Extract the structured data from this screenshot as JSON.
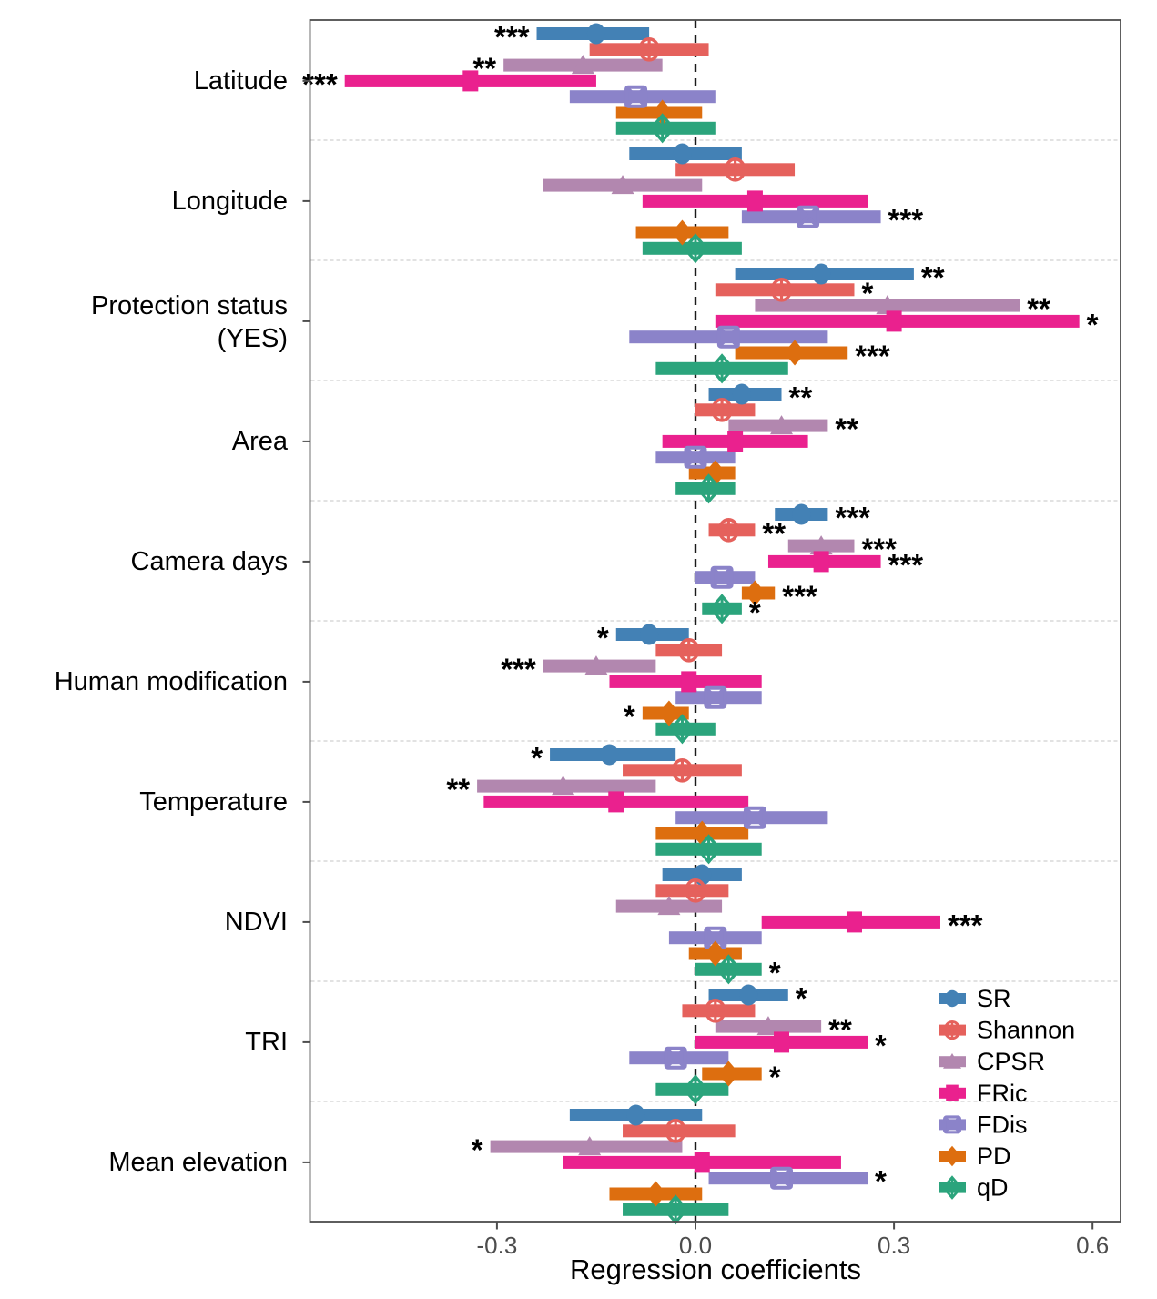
{
  "chart_data": {
    "type": "scatter",
    "subtype": "forest-coefficient-plot-with-error-bars",
    "title": "",
    "xlabel": "Regression coefficients",
    "x_axis": {
      "min": -0.58,
      "max": 0.64,
      "ticks": [
        -0.3,
        0.0,
        0.3,
        0.6
      ],
      "tick_labels": [
        "-0.3",
        "0.0",
        "0.3",
        "0.6"
      ],
      "zero_line": "dashed-black",
      "group_separators": "dashed-light-gray"
    },
    "legend": {
      "position": "inside-bottom-right",
      "items": [
        "SR",
        "Shannon",
        "CPSR",
        "FRic",
        "FDis",
        "PD",
        "qD"
      ]
    },
    "metrics": [
      {
        "name": "SR",
        "color": "#4381B5",
        "marker": "circle"
      },
      {
        "name": "Shannon",
        "color": "#E5615C",
        "marker": "circle-cross"
      },
      {
        "name": "CPSR",
        "color": "#B287AF",
        "marker": "triangle"
      },
      {
        "name": "FRic",
        "color": "#EA218E",
        "marker": "square"
      },
      {
        "name": "FDis",
        "color": "#8B83C9",
        "marker": "square-x"
      },
      {
        "name": "PD",
        "color": "#DD6E0F",
        "marker": "diamond"
      },
      {
        "name": "qD",
        "color": "#2BA47C",
        "marker": "diamond-cross"
      }
    ],
    "groups": [
      {
        "label": "Latitude",
        "rows": [
          {
            "metric": "SR",
            "est": -0.15,
            "lo": -0.24,
            "hi": -0.07,
            "sig": "***"
          },
          {
            "metric": "Shannon",
            "est": -0.07,
            "lo": -0.16,
            "hi": 0.02,
            "sig": ""
          },
          {
            "metric": "CPSR",
            "est": -0.17,
            "lo": -0.29,
            "hi": -0.05,
            "sig": "**"
          },
          {
            "metric": "FRic",
            "est": -0.34,
            "lo": -0.53,
            "hi": -0.15,
            "sig": "***"
          },
          {
            "metric": "FDis",
            "est": -0.09,
            "lo": -0.19,
            "hi": 0.03,
            "sig": ""
          },
          {
            "metric": "PD",
            "est": -0.05,
            "lo": -0.12,
            "hi": 0.01,
            "sig": ""
          },
          {
            "metric": "qD",
            "est": -0.05,
            "lo": -0.12,
            "hi": 0.03,
            "sig": ""
          }
        ]
      },
      {
        "label": "Longitude",
        "rows": [
          {
            "metric": "SR",
            "est": -0.02,
            "lo": -0.1,
            "hi": 0.07,
            "sig": ""
          },
          {
            "metric": "Shannon",
            "est": 0.06,
            "lo": -0.03,
            "hi": 0.15,
            "sig": ""
          },
          {
            "metric": "CPSR",
            "est": -0.11,
            "lo": -0.23,
            "hi": 0.01,
            "sig": ""
          },
          {
            "metric": "FRic",
            "est": 0.09,
            "lo": -0.08,
            "hi": 0.26,
            "sig": ""
          },
          {
            "metric": "FDis",
            "est": 0.17,
            "lo": 0.07,
            "hi": 0.28,
            "sig": "***"
          },
          {
            "metric": "PD",
            "est": -0.02,
            "lo": -0.09,
            "hi": 0.05,
            "sig": ""
          },
          {
            "metric": "qD",
            "est": 0.0,
            "lo": -0.08,
            "hi": 0.07,
            "sig": ""
          }
        ]
      },
      {
        "label": "Protection status\n(YES)",
        "rows": [
          {
            "metric": "SR",
            "est": 0.19,
            "lo": 0.06,
            "hi": 0.33,
            "sig": "**"
          },
          {
            "metric": "Shannon",
            "est": 0.13,
            "lo": 0.03,
            "hi": 0.24,
            "sig": "*"
          },
          {
            "metric": "CPSR",
            "est": 0.29,
            "lo": 0.09,
            "hi": 0.49,
            "sig": "**"
          },
          {
            "metric": "FRic",
            "est": 0.3,
            "lo": 0.03,
            "hi": 0.58,
            "sig": "*"
          },
          {
            "metric": "FDis",
            "est": 0.05,
            "lo": -0.1,
            "hi": 0.2,
            "sig": ""
          },
          {
            "metric": "PD",
            "est": 0.15,
            "lo": 0.06,
            "hi": 0.23,
            "sig": "***"
          },
          {
            "metric": "qD",
            "est": 0.04,
            "lo": -0.06,
            "hi": 0.14,
            "sig": ""
          }
        ]
      },
      {
        "label": "Area",
        "rows": [
          {
            "metric": "SR",
            "est": 0.07,
            "lo": 0.02,
            "hi": 0.13,
            "sig": "**"
          },
          {
            "metric": "Shannon",
            "est": 0.04,
            "lo": 0.0,
            "hi": 0.09,
            "sig": ""
          },
          {
            "metric": "CPSR",
            "est": 0.13,
            "lo": 0.05,
            "hi": 0.2,
            "sig": "**"
          },
          {
            "metric": "FRic",
            "est": 0.06,
            "lo": -0.05,
            "hi": 0.17,
            "sig": ""
          },
          {
            "metric": "FDis",
            "est": 0.0,
            "lo": -0.06,
            "hi": 0.06,
            "sig": ""
          },
          {
            "metric": "PD",
            "est": 0.03,
            "lo": -0.01,
            "hi": 0.06,
            "sig": ""
          },
          {
            "metric": "qD",
            "est": 0.02,
            "lo": -0.03,
            "hi": 0.06,
            "sig": ""
          }
        ]
      },
      {
        "label": "Camera days",
        "rows": [
          {
            "metric": "SR",
            "est": 0.16,
            "lo": 0.12,
            "hi": 0.2,
            "sig": "***"
          },
          {
            "metric": "Shannon",
            "est": 0.05,
            "lo": 0.02,
            "hi": 0.09,
            "sig": "**"
          },
          {
            "metric": "CPSR",
            "est": 0.19,
            "lo": 0.14,
            "hi": 0.24,
            "sig": "***"
          },
          {
            "metric": "FRic",
            "est": 0.19,
            "lo": 0.11,
            "hi": 0.28,
            "sig": "***"
          },
          {
            "metric": "FDis",
            "est": 0.04,
            "lo": 0.0,
            "hi": 0.09,
            "sig": ""
          },
          {
            "metric": "PD",
            "est": 0.09,
            "lo": 0.07,
            "hi": 0.12,
            "sig": "***"
          },
          {
            "metric": "qD",
            "est": 0.04,
            "lo": 0.01,
            "hi": 0.07,
            "sig": "*"
          }
        ]
      },
      {
        "label": "Human modification",
        "rows": [
          {
            "metric": "SR",
            "est": -0.07,
            "lo": -0.12,
            "hi": -0.01,
            "sig": "*"
          },
          {
            "metric": "Shannon",
            "est": -0.01,
            "lo": -0.06,
            "hi": 0.04,
            "sig": ""
          },
          {
            "metric": "CPSR",
            "est": -0.15,
            "lo": -0.23,
            "hi": -0.06,
            "sig": "***"
          },
          {
            "metric": "FRic",
            "est": -0.01,
            "lo": -0.13,
            "hi": 0.1,
            "sig": ""
          },
          {
            "metric": "FDis",
            "est": 0.03,
            "lo": -0.03,
            "hi": 0.1,
            "sig": ""
          },
          {
            "metric": "PD",
            "est": -0.04,
            "lo": -0.08,
            "hi": -0.01,
            "sig": "*"
          },
          {
            "metric": "qD",
            "est": -0.02,
            "lo": -0.06,
            "hi": 0.03,
            "sig": ""
          }
        ]
      },
      {
        "label": "Temperature",
        "rows": [
          {
            "metric": "SR",
            "est": -0.13,
            "lo": -0.22,
            "hi": -0.03,
            "sig": "*"
          },
          {
            "metric": "Shannon",
            "est": -0.02,
            "lo": -0.11,
            "hi": 0.07,
            "sig": ""
          },
          {
            "metric": "CPSR",
            "est": -0.2,
            "lo": -0.33,
            "hi": -0.06,
            "sig": "**"
          },
          {
            "metric": "FRic",
            "est": -0.12,
            "lo": -0.32,
            "hi": 0.08,
            "sig": ""
          },
          {
            "metric": "FDis",
            "est": 0.09,
            "lo": -0.03,
            "hi": 0.2,
            "sig": ""
          },
          {
            "metric": "PD",
            "est": 0.01,
            "lo": -0.06,
            "hi": 0.08,
            "sig": ""
          },
          {
            "metric": "qD",
            "est": 0.02,
            "lo": -0.06,
            "hi": 0.1,
            "sig": ""
          }
        ]
      },
      {
        "label": "NDVI",
        "rows": [
          {
            "metric": "SR",
            "est": 0.01,
            "lo": -0.05,
            "hi": 0.07,
            "sig": ""
          },
          {
            "metric": "Shannon",
            "est": 0.0,
            "lo": -0.06,
            "hi": 0.05,
            "sig": ""
          },
          {
            "metric": "CPSR",
            "est": -0.04,
            "lo": -0.12,
            "hi": 0.04,
            "sig": ""
          },
          {
            "metric": "FRic",
            "est": 0.24,
            "lo": 0.1,
            "hi": 0.37,
            "sig": "***"
          },
          {
            "metric": "FDis",
            "est": 0.03,
            "lo": -0.04,
            "hi": 0.1,
            "sig": ""
          },
          {
            "metric": "PD",
            "est": 0.03,
            "lo": -0.01,
            "hi": 0.07,
            "sig": ""
          },
          {
            "metric": "qD",
            "est": 0.05,
            "lo": 0.0,
            "hi": 0.1,
            "sig": "*"
          }
        ]
      },
      {
        "label": "TRI",
        "rows": [
          {
            "metric": "SR",
            "est": 0.08,
            "lo": 0.02,
            "hi": 0.14,
            "sig": "*"
          },
          {
            "metric": "Shannon",
            "est": 0.03,
            "lo": -0.02,
            "hi": 0.09,
            "sig": ""
          },
          {
            "metric": "CPSR",
            "est": 0.11,
            "lo": 0.03,
            "hi": 0.19,
            "sig": "**"
          },
          {
            "metric": "FRic",
            "est": 0.13,
            "lo": 0.0,
            "hi": 0.26,
            "sig": "*"
          },
          {
            "metric": "FDis",
            "est": -0.03,
            "lo": -0.1,
            "hi": 0.05,
            "sig": ""
          },
          {
            "metric": "PD",
            "est": 0.05,
            "lo": 0.01,
            "hi": 0.1,
            "sig": "*"
          },
          {
            "metric": "qD",
            "est": 0.0,
            "lo": -0.06,
            "hi": 0.05,
            "sig": ""
          }
        ]
      },
      {
        "label": "Mean elevation",
        "rows": [
          {
            "metric": "SR",
            "est": -0.09,
            "lo": -0.19,
            "hi": 0.01,
            "sig": ""
          },
          {
            "metric": "Shannon",
            "est": -0.03,
            "lo": -0.11,
            "hi": 0.06,
            "sig": ""
          },
          {
            "metric": "CPSR",
            "est": -0.16,
            "lo": -0.31,
            "hi": -0.02,
            "sig": "*"
          },
          {
            "metric": "FRic",
            "est": 0.01,
            "lo": -0.2,
            "hi": 0.22,
            "sig": ""
          },
          {
            "metric": "FDis",
            "est": 0.13,
            "lo": 0.02,
            "hi": 0.26,
            "sig": "*"
          },
          {
            "metric": "PD",
            "est": -0.06,
            "lo": -0.13,
            "hi": 0.01,
            "sig": ""
          },
          {
            "metric": "qD",
            "est": -0.03,
            "lo": -0.11,
            "hi": 0.05,
            "sig": ""
          }
        ]
      }
    ],
    "style": {
      "star_color": "#000000",
      "tick_label_color": "#4d4d4d",
      "panel_border_color": "#4d4d4d",
      "separator_color": "#d8d8d8",
      "zero_line_color": "#1a1a1a",
      "background": "#ffffff"
    }
  }
}
